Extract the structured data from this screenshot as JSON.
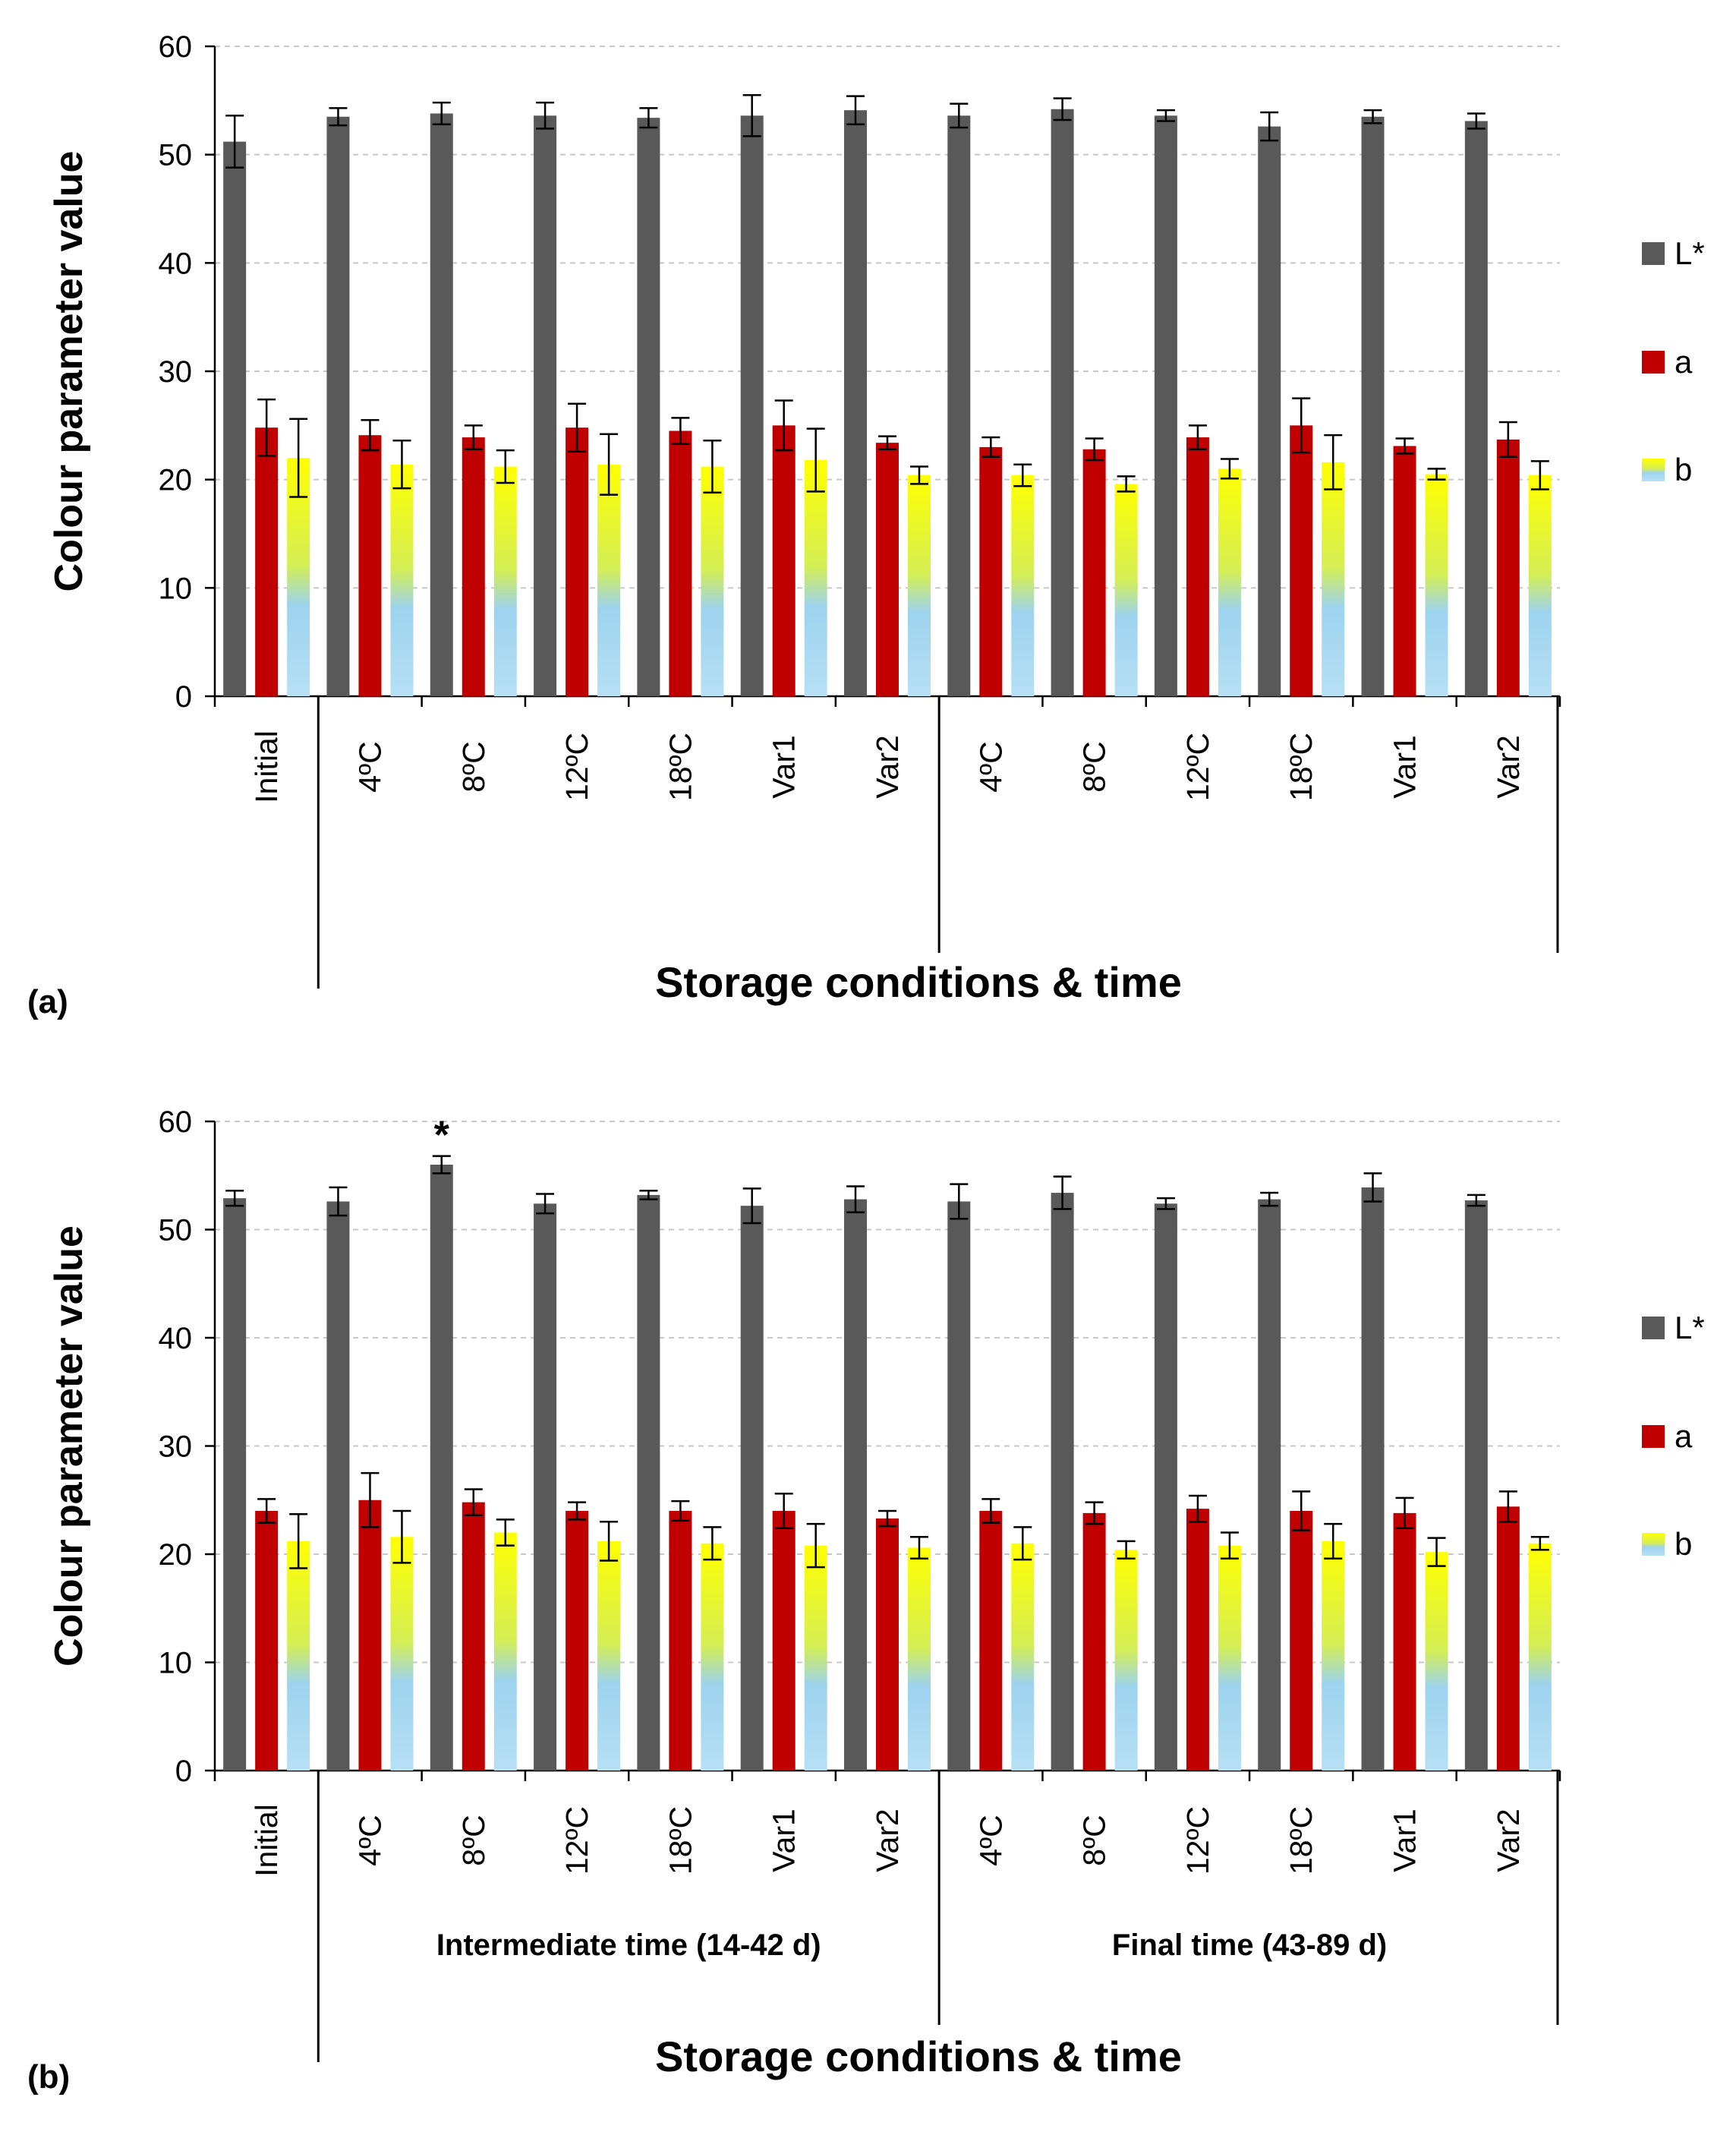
{
  "chart_data": [
    {
      "panel": "(a)",
      "type": "bar",
      "ylabel": "Colour parameter value",
      "xlabel": "Storage conditions & time",
      "ylim": [
        0,
        60
      ],
      "yticks": [
        0,
        10,
        20,
        30,
        40,
        50,
        60
      ],
      "grid": true,
      "legend_position": "right",
      "categories": [
        "Initial",
        "4ºC",
        "8ºC",
        "12ºC",
        "18ºC",
        "Var1",
        "Var2",
        "4ºC",
        "8ºC",
        "12ºC",
        "18ºC",
        "Var1",
        "Var2"
      ],
      "groups": [],
      "series": [
        {
          "name": "L*",
          "values": [
            51.2,
            53.5,
            53.8,
            53.6,
            53.4,
            53.6,
            54.1,
            53.6,
            54.2,
            53.6,
            52.6,
            53.5,
            53.1
          ],
          "errors": [
            2.4,
            0.8,
            1.0,
            1.2,
            0.9,
            1.9,
            1.3,
            1.1,
            1.0,
            0.5,
            1.3,
            0.6,
            0.7
          ]
        },
        {
          "name": "a",
          "values": [
            24.8,
            24.1,
            23.9,
            24.8,
            24.5,
            25.0,
            23.4,
            23.0,
            22.8,
            23.9,
            25.0,
            23.1,
            23.7
          ],
          "errors": [
            2.6,
            1.4,
            1.1,
            2.2,
            1.2,
            2.3,
            0.6,
            0.9,
            1.0,
            1.1,
            2.5,
            0.7,
            1.6
          ]
        },
        {
          "name": "b",
          "values": [
            22.0,
            21.4,
            21.2,
            21.4,
            21.2,
            21.8,
            20.4,
            20.4,
            19.6,
            21.0,
            21.6,
            20.5,
            20.4
          ],
          "errors": [
            3.6,
            2.2,
            1.5,
            2.8,
            2.4,
            2.9,
            0.8,
            1.0,
            0.7,
            0.9,
            2.5,
            0.5,
            1.3
          ]
        }
      ],
      "annotations": []
    },
    {
      "panel": "(b)",
      "type": "bar",
      "ylabel": "Colour parameter value",
      "xlabel": "Storage conditions & time",
      "ylim": [
        0,
        60
      ],
      "yticks": [
        0,
        10,
        20,
        30,
        40,
        50,
        60
      ],
      "grid": true,
      "legend_position": "right",
      "categories": [
        "Initial",
        "4ºC",
        "8ºC",
        "12ºC",
        "18ºC",
        "Var1",
        "Var2",
        "4ºC",
        "8ºC",
        "12ºC",
        "18ºC",
        "Var1",
        "Var2"
      ],
      "groups": [
        "Intermediate time (14-42 d)",
        "Final time (43-89 d)"
      ],
      "series": [
        {
          "name": "L*",
          "values": [
            52.9,
            52.6,
            56.0,
            52.4,
            53.2,
            52.2,
            52.8,
            52.6,
            53.4,
            52.4,
            52.8,
            53.9,
            52.7
          ],
          "errors": [
            0.7,
            1.3,
            0.8,
            0.9,
            0.4,
            1.6,
            1.2,
            1.6,
            1.5,
            0.5,
            0.6,
            1.3,
            0.5
          ]
        },
        {
          "name": "a",
          "values": [
            24.0,
            25.0,
            24.8,
            24.0,
            24.0,
            24.0,
            23.3,
            24.0,
            23.8,
            24.2,
            24.0,
            23.8,
            24.4
          ],
          "errors": [
            1.1,
            2.5,
            1.2,
            0.8,
            0.9,
            1.6,
            0.7,
            1.1,
            1.0,
            1.2,
            1.8,
            1.4,
            1.4
          ]
        },
        {
          "name": "b",
          "values": [
            21.2,
            21.6,
            22.0,
            21.2,
            21.0,
            20.8,
            20.6,
            21.0,
            20.4,
            20.8,
            21.2,
            20.2,
            21.0
          ],
          "errors": [
            2.5,
            2.4,
            1.2,
            1.8,
            1.5,
            2.0,
            1.0,
            1.5,
            0.8,
            1.2,
            1.6,
            1.3,
            0.6
          ]
        }
      ],
      "annotations": [
        {
          "category_index": 2,
          "series": "L*",
          "text": "*"
        }
      ]
    }
  ],
  "colors": {
    "L_star": "#595959",
    "a": "#c00000",
    "b_top": "#ffff00",
    "b_bottom": "#9dd3ee",
    "grid": "#c8c8c8",
    "axis": "#000000"
  }
}
